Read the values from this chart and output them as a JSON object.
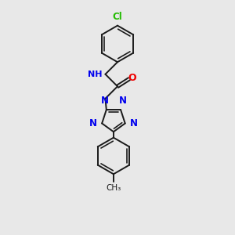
{
  "background_color": "#e8e8e8",
  "bond_color": "#1a1a1a",
  "bond_width": 1.4,
  "N_color": "#0000ee",
  "O_color": "#ee0000",
  "Cl_color": "#22bb00",
  "figsize": [
    3.0,
    3.0
  ],
  "dpi": 100,
  "xlim": [
    0,
    10
  ],
  "ylim": [
    0,
    10
  ]
}
